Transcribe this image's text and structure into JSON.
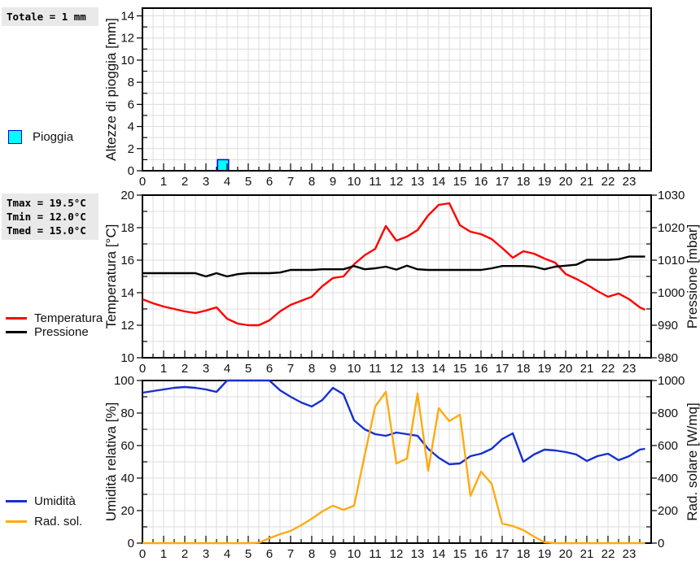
{
  "stats": {
    "totale": "Totale = 1 mm",
    "tmax": "Tmax = 19.5°C",
    "tmin": "Tmin = 12.0°C",
    "tmed": "Tmed = 15.0°C"
  },
  "legends": {
    "rain": "Pioggia",
    "temperature": "Temperatura",
    "pressure": "Pressione",
    "humidity": "Umidità",
    "radiation": "Rad. sol."
  },
  "axis_titles": {
    "rain_y": "Altezze di pioggia [mm]",
    "temp_y": "Temperatura [°C]",
    "temp_y2": "Pressione [mbar]",
    "hum_y": "Umidità relativa [%]",
    "hum_y2": "Rad. solare [W/mq]"
  },
  "colors": {
    "rain_fill": "#00ffff",
    "rain_border": "#0000e6",
    "temperature": "#ff0000",
    "pressure": "#000000",
    "humidity": "#1530d0",
    "radiation": "#ffaa11",
    "grid": "#dcdcdc",
    "stats_bg": "#e9e9e9"
  },
  "chart_data": [
    {
      "id": "rain",
      "type": "bar",
      "ylabel": "Altezze di pioggia [mm]",
      "xlim": [
        0,
        24.04
      ],
      "xtick": 1,
      "xminor": 0.5,
      "ylim": [
        0,
        14.7
      ],
      "ytick": 2,
      "yminor": 1,
      "ytick_labels": [
        0,
        2,
        4,
        6,
        8,
        10,
        12,
        14
      ],
      "xtick_labels": [
        0,
        1,
        2,
        3,
        4,
        5,
        6,
        7,
        8,
        9,
        10,
        11,
        12,
        13,
        14,
        15,
        16,
        17,
        18,
        19,
        20,
        21,
        22,
        23
      ],
      "bars": [
        {
          "x": 3.81,
          "width": 0.52,
          "value": 1,
          "series": "Pioggia"
        }
      ],
      "total_mm": 1
    },
    {
      "id": "temperature",
      "type": "line",
      "ylabel": "Temperatura [°C]",
      "y2label": "Pressione [mbar]",
      "xlim": [
        0,
        24.04
      ],
      "xtick": 1,
      "xminor": 0.5,
      "ylim": [
        10,
        20
      ],
      "ytick": 2,
      "yminor": 1,
      "ytick_labels": [
        10,
        12,
        14,
        16,
        18,
        20
      ],
      "y2lim": [
        980,
        1030
      ],
      "y2tick": 10,
      "y2minor": 5,
      "y2tick_labels": [
        980,
        990,
        1000,
        1010,
        1020,
        1030
      ],
      "xtick_labels": [
        0,
        1,
        2,
        3,
        4,
        5,
        6,
        7,
        8,
        9,
        10,
        11,
        12,
        13,
        14,
        15,
        16,
        17,
        18,
        19,
        20,
        21,
        22,
        23
      ],
      "x": [
        0,
        0.5,
        1,
        1.5,
        2,
        2.5,
        3,
        3.5,
        4,
        4.5,
        5,
        5.5,
        6,
        6.5,
        7,
        7.5,
        8,
        8.5,
        9,
        9.5,
        10,
        10.5,
        11,
        11.5,
        12,
        12.5,
        13,
        13.5,
        14,
        14.5,
        15,
        15.5,
        16,
        16.5,
        17,
        17.5,
        18,
        18.5,
        19,
        19.5,
        20,
        20.5,
        21,
        21.5,
        22,
        22.5,
        23,
        23.5,
        23.75
      ],
      "series": [
        {
          "name": "Temperatura",
          "id": "temperatura-line",
          "color_key": "temperature",
          "axis": "y",
          "values": [
            13.6,
            13.35,
            13.15,
            13.0,
            12.85,
            12.75,
            12.9,
            13.1,
            12.4,
            12.1,
            12.0,
            12.0,
            12.3,
            12.85,
            13.25,
            13.5,
            13.75,
            14.4,
            14.9,
            15.0,
            15.75,
            16.3,
            16.7,
            18.1,
            17.2,
            17.45,
            17.85,
            18.75,
            19.4,
            19.5,
            18.15,
            17.75,
            17.6,
            17.3,
            16.75,
            16.15,
            16.55,
            16.4,
            16.1,
            15.85,
            15.15,
            14.85,
            14.5,
            14.1,
            13.75,
            13.95,
            13.6,
            13.1,
            12.95
          ]
        },
        {
          "name": "Pressione",
          "id": "pressione-line",
          "color_key": "pressure",
          "axis": "y2",
          "values": [
            1006,
            1006,
            1006,
            1006,
            1006,
            1006,
            1005,
            1006,
            1005,
            1005.7,
            1006,
            1006,
            1006,
            1006.2,
            1007,
            1007,
            1007,
            1007.2,
            1007.2,
            1007.2,
            1008.2,
            1007.2,
            1007.5,
            1008,
            1007.1,
            1008.3,
            1007.2,
            1007,
            1007,
            1007,
            1007,
            1007,
            1007,
            1007.5,
            1008.2,
            1008.2,
            1008.2,
            1008,
            1007.2,
            1008,
            1008.3,
            1008.6,
            1010.1,
            1010.1,
            1010.1,
            1010.3,
            1011.1,
            1011.1,
            1011.1
          ]
        }
      ],
      "tmax_c": 19.5,
      "tmin_c": 12.0,
      "tmed_c": 15.0
    },
    {
      "id": "humidity",
      "type": "line",
      "ylabel": "Umidità relativa [%]",
      "y2label": "Rad. solare [W/mq]",
      "xlim": [
        0,
        24.04
      ],
      "xtick": 1,
      "xminor": 0.5,
      "ylim": [
        0,
        100
      ],
      "ytick": 20,
      "yminor": 10,
      "ytick_labels": [
        0,
        20,
        40,
        60,
        80,
        100
      ],
      "y2lim": [
        0,
        1000
      ],
      "y2tick": 200,
      "y2minor": 100,
      "y2tick_labels": [
        0,
        200,
        400,
        600,
        800,
        1000
      ],
      "xtick_labels": [
        0,
        1,
        2,
        3,
        4,
        5,
        6,
        7,
        8,
        9,
        10,
        11,
        12,
        13,
        14,
        15,
        16,
        17,
        18,
        19,
        20,
        21,
        22,
        23
      ],
      "x": [
        0,
        0.5,
        1,
        1.5,
        2,
        2.5,
        3,
        3.5,
        4,
        4.5,
        5,
        5.5,
        6,
        6.5,
        7,
        7.5,
        8,
        8.5,
        9,
        9.5,
        10,
        10.5,
        11,
        11.5,
        12,
        12.5,
        13,
        13.5,
        14,
        14.5,
        15,
        15.5,
        16,
        16.5,
        17,
        17.5,
        18,
        18.5,
        19,
        19.5,
        20,
        20.5,
        21,
        21.5,
        22,
        22.5,
        23,
        23.5,
        23.75
      ],
      "series": [
        {
          "name": "Umidità",
          "id": "umidita-line",
          "color_key": "humidity",
          "axis": "y",
          "values": [
            92.5,
            93.5,
            94.5,
            95.5,
            96,
            95.5,
            94.5,
            93,
            100,
            100,
            100,
            100,
            100,
            94,
            90,
            86.5,
            84,
            88,
            95.5,
            91.5,
            75.5,
            70,
            67,
            66,
            68,
            67,
            66,
            58,
            52.5,
            48.5,
            49,
            53.5,
            55,
            58,
            64,
            67.5,
            50,
            54.5,
            57.5,
            57,
            56,
            54.5,
            50.5,
            53.5,
            55,
            51,
            53.5,
            57.5,
            58
          ]
        },
        {
          "name": "Rad. sol.",
          "id": "radiazione-line",
          "color_key": "radiation",
          "axis": "y2",
          "values": [
            0,
            0,
            0,
            0,
            0,
            0,
            0,
            0,
            0,
            0,
            0,
            2,
            30,
            55,
            75,
            110,
            150,
            195,
            230,
            205,
            230,
            540,
            840,
            930,
            490,
            520,
            920,
            445,
            830,
            750,
            790,
            290,
            440,
            365,
            120,
            105,
            80,
            40,
            5,
            0,
            0,
            0,
            0,
            0,
            0,
            0,
            0,
            0,
            0
          ]
        }
      ]
    }
  ]
}
